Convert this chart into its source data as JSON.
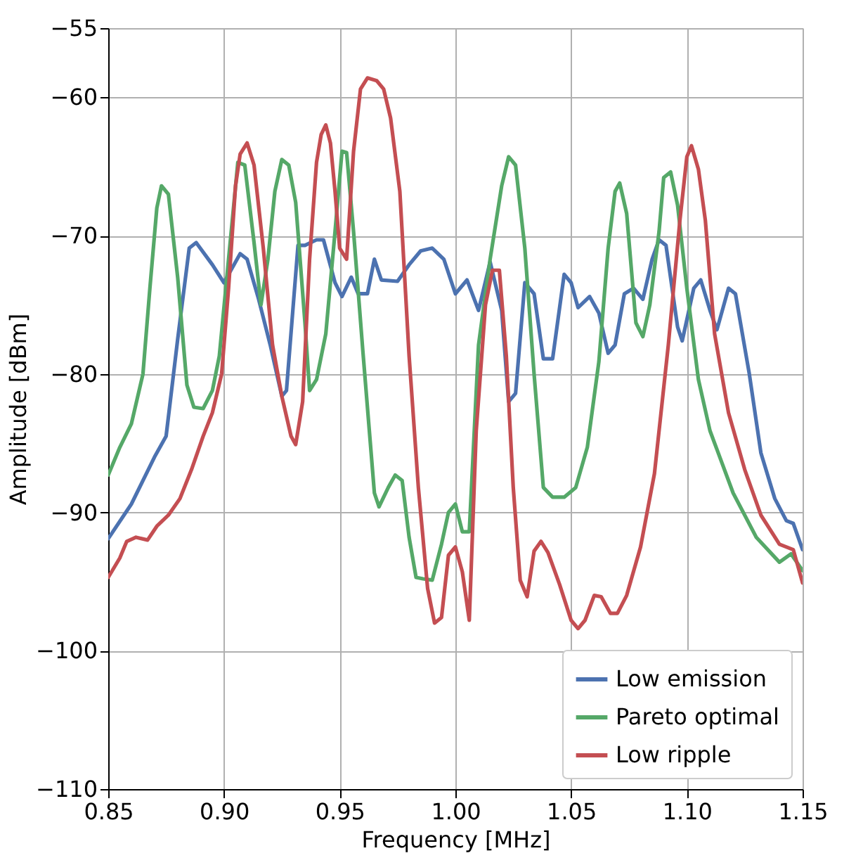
{
  "chart_data": {
    "type": "line",
    "xlabel": "Frequency [MHz]",
    "ylabel": "Amplitude [dBm]",
    "xlim": [
      0.85,
      1.15
    ],
    "xticks": [
      {
        "value": 0.85,
        "label": "0.85"
      },
      {
        "value": 0.9,
        "label": "0.90"
      },
      {
        "value": 0.95,
        "label": "0.95"
      },
      {
        "value": 1.0,
        "label": "1.00"
      },
      {
        "value": 1.05,
        "label": "1.05"
      },
      {
        "value": 1.1,
        "label": "1.10"
      },
      {
        "value": 1.15,
        "label": "1.15"
      }
    ],
    "ylim": [
      -110,
      -55
    ],
    "yticks": [
      -110,
      -100,
      -90,
      -80,
      -70,
      -60,
      -55
    ],
    "grid": true,
    "legend": "bottom right",
    "line_style": "solid",
    "marker": "none",
    "series": [
      {
        "name": "Low emission",
        "color": "#4c72b0",
        "x": [
          0.85,
          0.86,
          0.87,
          0.875,
          0.88,
          0.885,
          0.888,
          0.895,
          0.9,
          0.907,
          0.91,
          0.915,
          0.92,
          0.925,
          0.927,
          0.932,
          0.935,
          0.94,
          0.943,
          0.948,
          0.951,
          0.955,
          0.958,
          0.962,
          0.965,
          0.968,
          0.975,
          0.98,
          0.985,
          0.99,
          0.995,
          1.0,
          1.005,
          1.01,
          1.015,
          1.02,
          1.023,
          1.026,
          1.03,
          1.034,
          1.038,
          1.042,
          1.047,
          1.05,
          1.053,
          1.058,
          1.062,
          1.066,
          1.069,
          1.073,
          1.077,
          1.081,
          1.085,
          1.088,
          1.091,
          1.096,
          1.098,
          1.103,
          1.106,
          1.11,
          1.113,
          1.118,
          1.121,
          1.127,
          1.132,
          1.138,
          1.143,
          1.146,
          1.15
        ],
        "values": [
          -91.9,
          -89.4,
          -86,
          -84.5,
          -77.5,
          -70.9,
          -70.5,
          -72.1,
          -73.4,
          -71.3,
          -71.7,
          -74.6,
          -77.9,
          -81.6,
          -81.2,
          -70.7,
          -70.7,
          -70.3,
          -70.3,
          -73.4,
          -74.4,
          -73,
          -74.2,
          -74.2,
          -71.7,
          -73.2,
          -73.3,
          -72.1,
          -71.1,
          -70.9,
          -71.7,
          -74.2,
          -73.2,
          -75.4,
          -71.9,
          -75.4,
          -82,
          -81.4,
          -73.4,
          -74.2,
          -78.9,
          -78.9,
          -72.8,
          -73.4,
          -75.2,
          -74.4,
          -75.6,
          -78.5,
          -77.9,
          -74.2,
          -73.8,
          -74.6,
          -71.7,
          -70.3,
          -70.7,
          -76.6,
          -77.6,
          -73.8,
          -73.2,
          -75.4,
          -76.8,
          -73.8,
          -74.2,
          -80,
          -85.7,
          -89,
          -90.6,
          -90.8,
          -92.7
        ]
      },
      {
        "name": "Pareto optimal",
        "color": "#55a868",
        "x": [
          0.85,
          0.855,
          0.86,
          0.865,
          0.868,
          0.871,
          0.873,
          0.876,
          0.88,
          0.884,
          0.887,
          0.891,
          0.895,
          0.898,
          0.902,
          0.906,
          0.909,
          0.913,
          0.916,
          0.919,
          0.922,
          0.925,
          0.928,
          0.931,
          0.935,
          0.937,
          0.94,
          0.944,
          0.948,
          0.951,
          0.953,
          0.956,
          0.96,
          0.965,
          0.967,
          0.971,
          0.974,
          0.977,
          0.98,
          0.983,
          0.986,
          0.99,
          0.994,
          0.997,
          1.0,
          1.003,
          1.006,
          1.01,
          1.015,
          1.02,
          1.023,
          1.026,
          1.03,
          1.034,
          1.038,
          1.042,
          1.047,
          1.052,
          1.057,
          1.062,
          1.066,
          1.069,
          1.071,
          1.074,
          1.078,
          1.081,
          1.084,
          1.088,
          1.09,
          1.093,
          1.096,
          1.1,
          1.105,
          1.11,
          1.12,
          1.13,
          1.14,
          1.145,
          1.15
        ],
        "values": [
          -87.3,
          -85.3,
          -83.6,
          -80,
          -73.8,
          -68,
          -66.4,
          -67,
          -73,
          -80.8,
          -82.4,
          -82.5,
          -81.2,
          -78.7,
          -71.7,
          -64.7,
          -64.9,
          -70.5,
          -75,
          -71.7,
          -66.8,
          -64.5,
          -64.9,
          -67.6,
          -76.3,
          -81.2,
          -80.4,
          -77.1,
          -69.7,
          -63.9,
          -64,
          -69.7,
          -78.3,
          -88.6,
          -89.6,
          -88.2,
          -87.3,
          -87.7,
          -91.8,
          -94.7,
          -94.8,
          -94.9,
          -92.3,
          -90,
          -89.4,
          -91.4,
          -91.4,
          -77.9,
          -71.7,
          -66.4,
          -64.3,
          -64.9,
          -70.9,
          -80,
          -88.2,
          -88.9,
          -88.9,
          -88.2,
          -85.3,
          -79.1,
          -70.9,
          -66.8,
          -66.2,
          -68.4,
          -76.3,
          -77.3,
          -75,
          -69.7,
          -65.8,
          -65.4,
          -67.8,
          -73.8,
          -80.4,
          -84.1,
          -88.6,
          -91.8,
          -93.6,
          -93,
          -94.2
        ]
      },
      {
        "name": "Low ripple",
        "color": "#c44e52",
        "x": [
          0.85,
          0.855,
          0.858,
          0.862,
          0.867,
          0.871,
          0.876,
          0.881,
          0.886,
          0.891,
          0.895,
          0.899,
          0.902,
          0.905,
          0.907,
          0.91,
          0.913,
          0.917,
          0.921,
          0.925,
          0.929,
          0.931,
          0.934,
          0.937,
          0.94,
          0.942,
          0.944,
          0.946,
          0.948,
          0.95,
          0.953,
          0.956,
          0.959,
          0.962,
          0.966,
          0.969,
          0.972,
          0.976,
          0.98,
          0.984,
          0.988,
          0.991,
          0.994,
          0.997,
          1.0,
          1.003,
          1.006,
          1.009,
          1.013,
          1.016,
          1.019,
          1.022,
          1.025,
          1.028,
          1.031,
          1.034,
          1.037,
          1.04,
          1.045,
          1.05,
          1.053,
          1.056,
          1.06,
          1.063,
          1.067,
          1.07,
          1.074,
          1.08,
          1.086,
          1.092,
          1.097,
          1.1,
          1.102,
          1.105,
          1.108,
          1.112,
          1.118,
          1.125,
          1.132,
          1.14,
          1.146,
          1.15
        ],
        "values": [
          -94.7,
          -93.3,
          -92.1,
          -91.8,
          -92,
          -91,
          -90.2,
          -89,
          -86.9,
          -84.5,
          -82.8,
          -80,
          -73.8,
          -66.4,
          -64.1,
          -63.3,
          -64.9,
          -70.9,
          -77.9,
          -81.6,
          -84.5,
          -85.1,
          -82,
          -71.7,
          -64.7,
          -62.7,
          -62,
          -63.3,
          -66.8,
          -70.9,
          -71.7,
          -63.9,
          -59.4,
          -58.6,
          -58.8,
          -59.4,
          -61.5,
          -66.8,
          -78.7,
          -88.2,
          -95.5,
          -98,
          -97.6,
          -93.1,
          -92.5,
          -94.3,
          -97.8,
          -84.1,
          -75,
          -72.5,
          -72.5,
          -78.7,
          -88.2,
          -94.9,
          -96.1,
          -92.8,
          -92.1,
          -92.9,
          -95.2,
          -97.8,
          -98.4,
          -97.8,
          -96,
          -96.1,
          -97.3,
          -97.3,
          -96,
          -92.5,
          -87.2,
          -77.9,
          -68.9,
          -64.3,
          -63.5,
          -65.2,
          -68.9,
          -77.1,
          -82.8,
          -86.9,
          -90.2,
          -92.3,
          -92.7,
          -95.1
        ]
      }
    ]
  }
}
